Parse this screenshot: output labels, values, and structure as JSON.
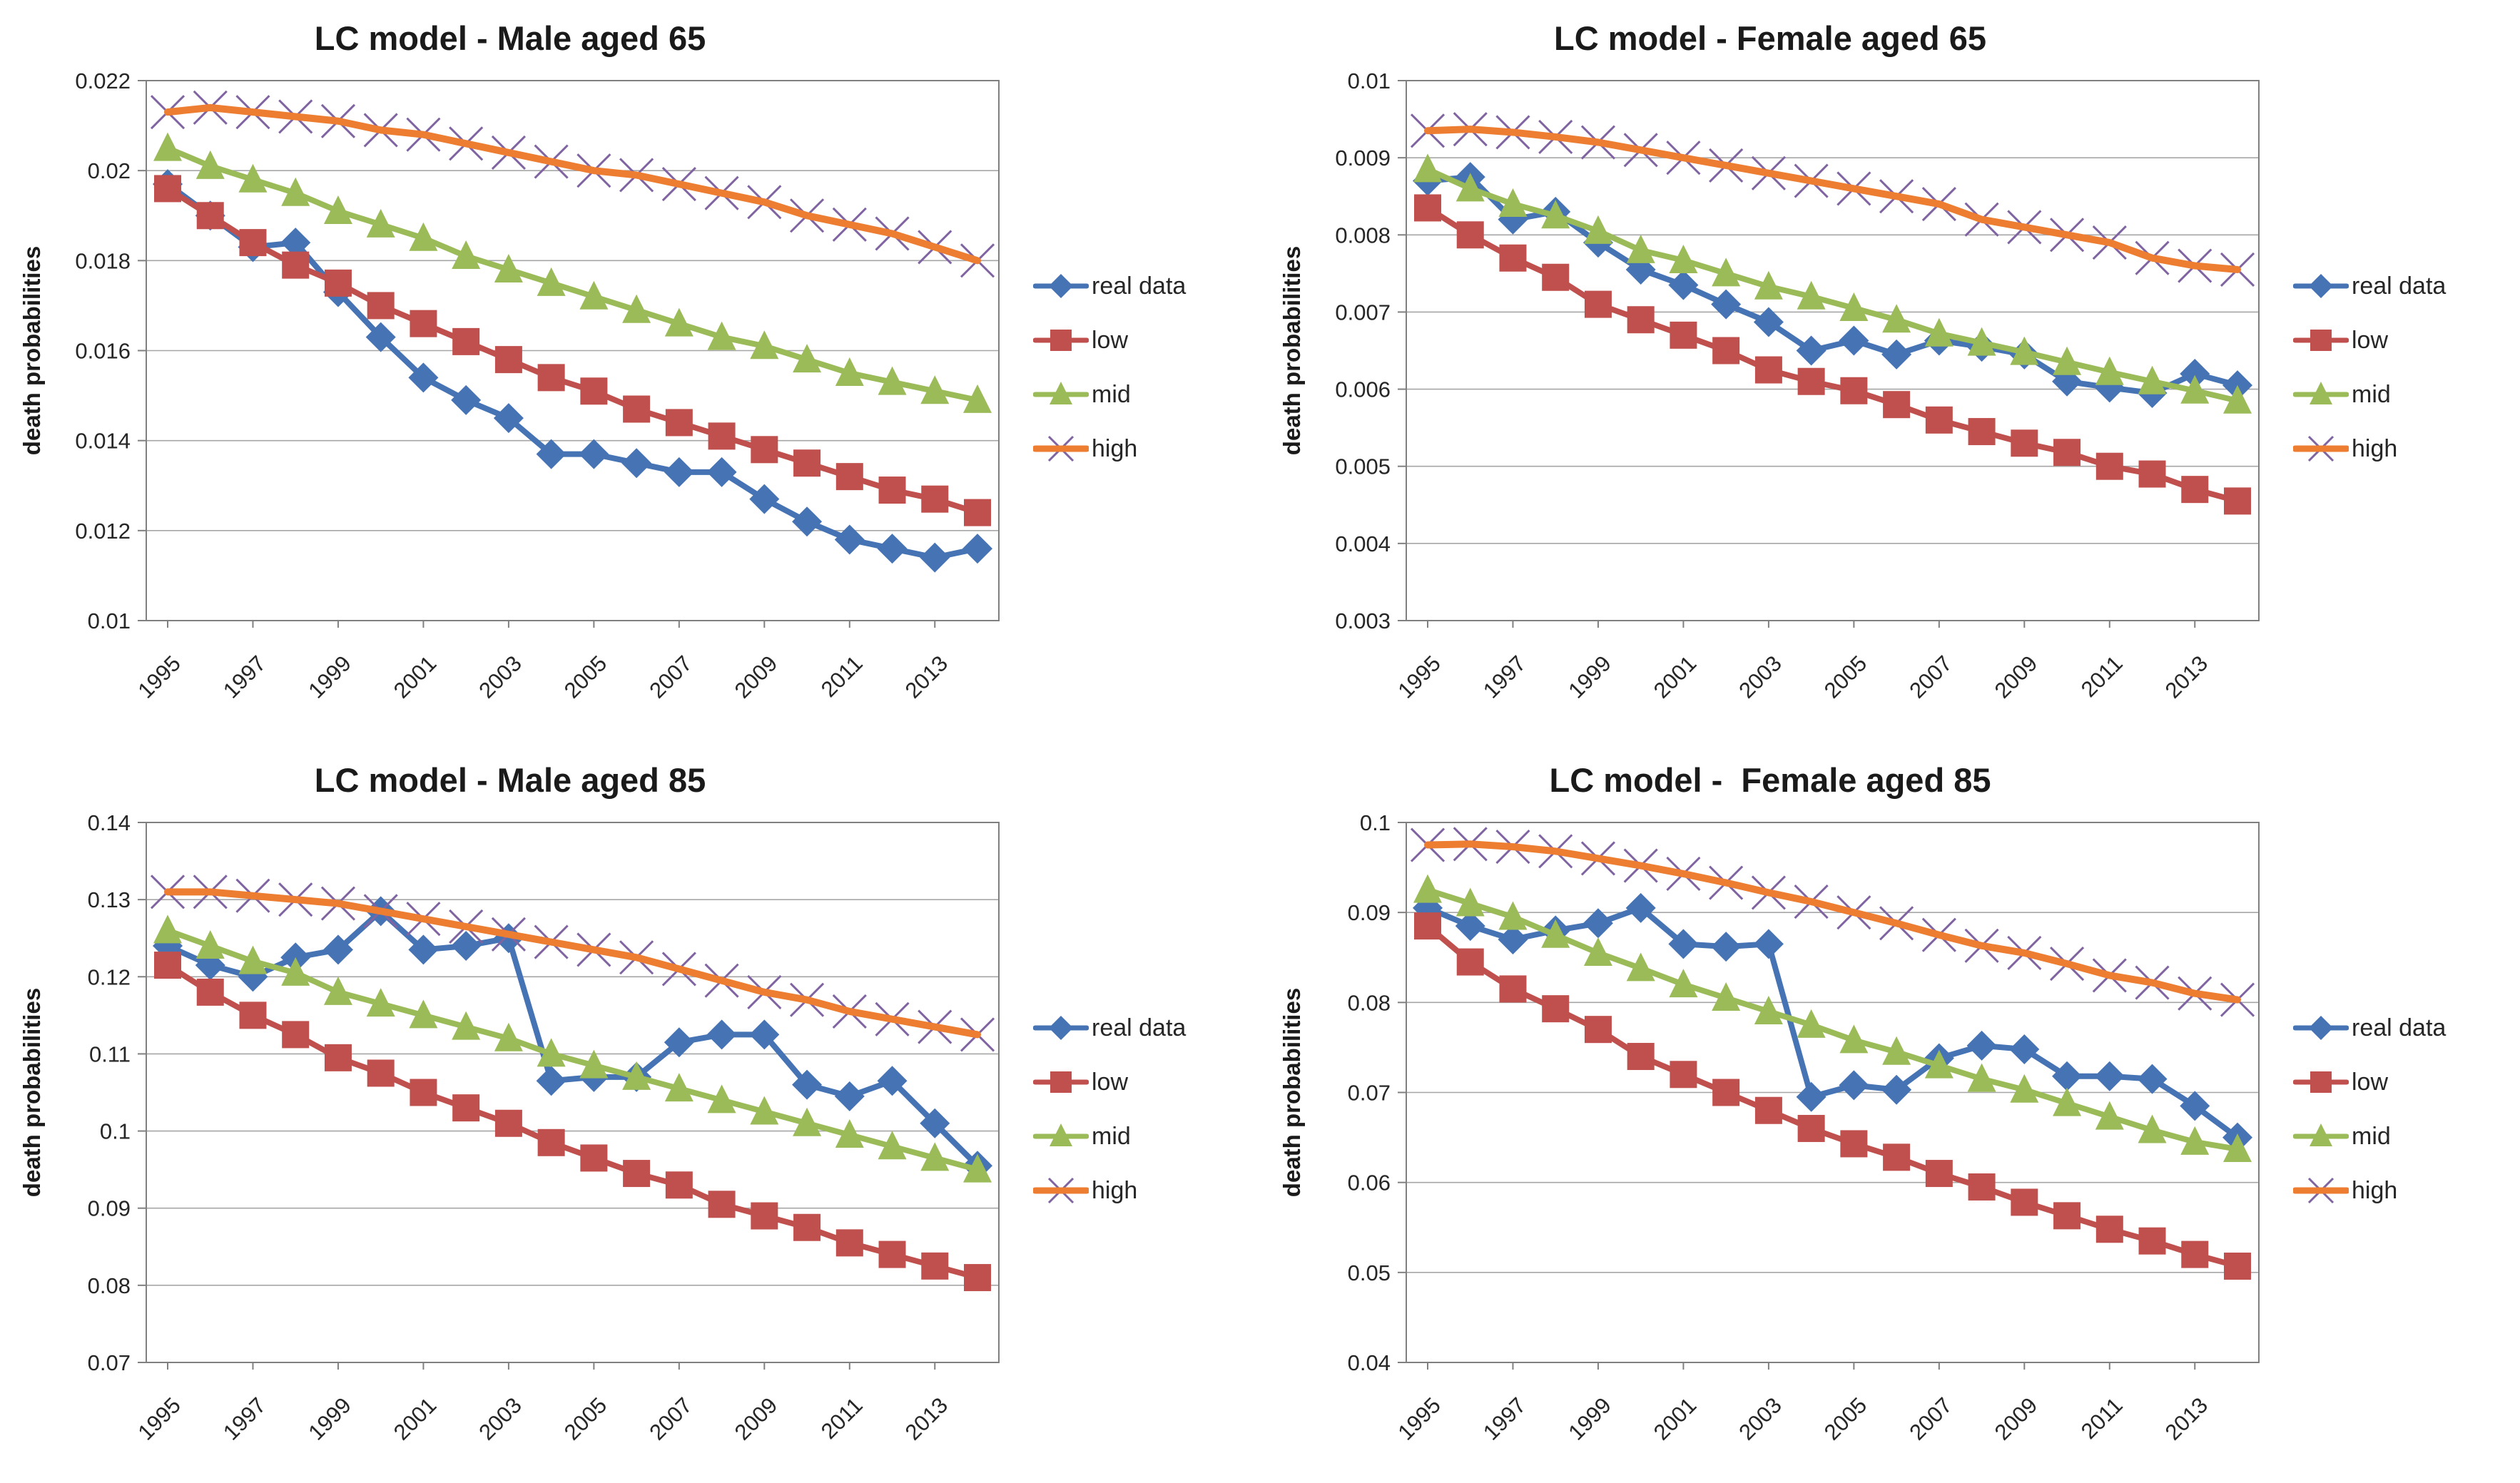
{
  "figure": {
    "background": "#ffffff",
    "gridline_color": "#a6a6a6",
    "axis_color": "#808080",
    "text_color": "#262626"
  },
  "chart_data": [
    {
      "type": "line",
      "title": "LC model - Male aged 65",
      "ylabel": "death probabilities",
      "xlabel": "",
      "grid": "horizontal",
      "legend_position": "right",
      "x": [
        1995,
        1996,
        1997,
        1998,
        1999,
        2000,
        2001,
        2002,
        2003,
        2004,
        2005,
        2006,
        2007,
        2008,
        2009,
        2010,
        2011,
        2012,
        2013,
        2014
      ],
      "x_tick_labels": [
        "1995",
        "1997",
        "1999",
        "2001",
        "2003",
        "2005",
        "2007",
        "2009",
        "2011",
        "2013"
      ],
      "ylim": [
        0.01,
        0.022
      ],
      "y_ticks": [
        {
          "v": 0.01,
          "label": "0.01"
        },
        {
          "v": 0.012,
          "label": "0.012"
        },
        {
          "v": 0.014,
          "label": "0.014"
        },
        {
          "v": 0.016,
          "label": "0.016"
        },
        {
          "v": 0.018,
          "label": "0.018"
        },
        {
          "v": 0.02,
          "label": "0.02"
        },
        {
          "v": 0.022,
          "label": "0.022"
        }
      ],
      "series": [
        {
          "name": "real data",
          "color": "#4573B4",
          "marker": "diamond",
          "values": [
            0.0197,
            0.019,
            0.0183,
            0.0184,
            0.0173,
            0.0163,
            0.0154,
            0.0149,
            0.0145,
            0.0137,
            0.0137,
            0.0135,
            0.0133,
            0.0133,
            0.0127,
            0.0122,
            0.0118,
            0.0116,
            0.0114,
            0.0116
          ]
        },
        {
          "name": "low",
          "color": "#C0504D",
          "marker": "square",
          "values": [
            0.0196,
            0.019,
            0.0184,
            0.0179,
            0.0175,
            0.017,
            0.0166,
            0.0162,
            0.0158,
            0.0154,
            0.0151,
            0.0147,
            0.0144,
            0.0141,
            0.0138,
            0.0135,
            0.0132,
            0.0129,
            0.0127,
            0.0124
          ]
        },
        {
          "name": "mid",
          "color": "#9BBB59",
          "marker": "triangle",
          "values": [
            0.0205,
            0.0201,
            0.0198,
            0.0195,
            0.0191,
            0.0188,
            0.0185,
            0.0181,
            0.0178,
            0.0175,
            0.0172,
            0.0169,
            0.0166,
            0.0163,
            0.0161,
            0.0158,
            0.0155,
            0.0153,
            0.0151,
            0.0149
          ]
        },
        {
          "name": "high",
          "color": "#ED7D31",
          "marker": "x",
          "marker_color": "#8064A2",
          "values": [
            0.0213,
            0.0214,
            0.0213,
            0.0212,
            0.0211,
            0.0209,
            0.0208,
            0.0206,
            0.0204,
            0.0202,
            0.02,
            0.0199,
            0.0197,
            0.0195,
            0.0193,
            0.019,
            0.0188,
            0.0186,
            0.0183,
            0.018
          ]
        }
      ]
    },
    {
      "type": "line",
      "title": "LC model - Female aged 65",
      "ylabel": "death probabilities",
      "xlabel": "",
      "grid": "horizontal",
      "legend_position": "right",
      "x": [
        1995,
        1996,
        1997,
        1998,
        1999,
        2000,
        2001,
        2002,
        2003,
        2004,
        2005,
        2006,
        2007,
        2008,
        2009,
        2010,
        2011,
        2012,
        2013,
        2014
      ],
      "x_tick_labels": [
        "1995",
        "1997",
        "1999",
        "2001",
        "2003",
        "2005",
        "2007",
        "2009",
        "2011",
        "2013"
      ],
      "ylim": [
        0.003,
        0.01
      ],
      "y_ticks": [
        {
          "v": 0.003,
          "label": "0.003"
        },
        {
          "v": 0.004,
          "label": "0.004"
        },
        {
          "v": 0.005,
          "label": "0.005"
        },
        {
          "v": 0.006,
          "label": "0.006"
        },
        {
          "v": 0.007,
          "label": "0.007"
        },
        {
          "v": 0.008,
          "label": "0.008"
        },
        {
          "v": 0.009,
          "label": "0.009"
        },
        {
          "v": 0.01,
          "label": "0.01"
        }
      ],
      "series": [
        {
          "name": "real data",
          "color": "#4573B4",
          "marker": "diamond",
          "values": [
            0.0087,
            0.00875,
            0.0082,
            0.0083,
            0.0079,
            0.00755,
            0.00735,
            0.0071,
            0.00687,
            0.0065,
            0.00663,
            0.00645,
            0.00663,
            0.00655,
            0.00645,
            0.0061,
            0.00602,
            0.00595,
            0.0062,
            0.00605
          ]
        },
        {
          "name": "low",
          "color": "#C0504D",
          "marker": "square",
          "values": [
            0.00835,
            0.008,
            0.0077,
            0.00745,
            0.0071,
            0.0069,
            0.0067,
            0.0065,
            0.00625,
            0.0061,
            0.00598,
            0.0058,
            0.0056,
            0.00545,
            0.0053,
            0.00518,
            0.005,
            0.0049,
            0.0047,
            0.00455
          ]
        },
        {
          "name": "mid",
          "color": "#9BBB59",
          "marker": "triangle",
          "values": [
            0.00885,
            0.0086,
            0.0084,
            0.00825,
            0.00805,
            0.0078,
            0.00767,
            0.0075,
            0.00733,
            0.0072,
            0.00705,
            0.0069,
            0.00672,
            0.0066,
            0.00648,
            0.00635,
            0.00622,
            0.0061,
            0.00598,
            0.00585
          ]
        },
        {
          "name": "high",
          "color": "#ED7D31",
          "marker": "x",
          "marker_color": "#8064A2",
          "values": [
            0.00935,
            0.00937,
            0.00933,
            0.00927,
            0.0092,
            0.0091,
            0.009,
            0.0089,
            0.0088,
            0.0087,
            0.0086,
            0.0085,
            0.0084,
            0.0082,
            0.0081,
            0.008,
            0.0079,
            0.0077,
            0.0076,
            0.00755
          ]
        }
      ]
    },
    {
      "type": "line",
      "title": "LC model - Male aged 85",
      "ylabel": "death probabilities",
      "xlabel": "",
      "grid": "horizontal",
      "legend_position": "right",
      "x": [
        1995,
        1996,
        1997,
        1998,
        1999,
        2000,
        2001,
        2002,
        2003,
        2004,
        2005,
        2006,
        2007,
        2008,
        2009,
        2010,
        2011,
        2012,
        2013,
        2014
      ],
      "x_tick_labels": [
        "1995",
        "1997",
        "1999",
        "2001",
        "2003",
        "2005",
        "2007",
        "2009",
        "2011",
        "2013"
      ],
      "ylim": [
        0.07,
        0.14
      ],
      "y_ticks": [
        {
          "v": 0.07,
          "label": "0.07"
        },
        {
          "v": 0.08,
          "label": "0.08"
        },
        {
          "v": 0.09,
          "label": "0.09"
        },
        {
          "v": 0.1,
          "label": "0.1"
        },
        {
          "v": 0.11,
          "label": "0.11"
        },
        {
          "v": 0.12,
          "label": "0.12"
        },
        {
          "v": 0.13,
          "label": "0.13"
        },
        {
          "v": 0.14,
          "label": "0.14"
        }
      ],
      "series": [
        {
          "name": "real data",
          "color": "#4573B4",
          "marker": "diamond",
          "values": [
            0.124,
            0.1215,
            0.12,
            0.1225,
            0.1235,
            0.1285,
            0.1235,
            0.124,
            0.125,
            0.1065,
            0.107,
            0.107,
            0.1115,
            0.1125,
            0.1125,
            0.106,
            0.1045,
            0.1065,
            0.101,
            0.0955
          ]
        },
        {
          "name": "low",
          "color": "#C0504D",
          "marker": "square",
          "values": [
            0.1215,
            0.118,
            0.115,
            0.1125,
            0.1095,
            0.1075,
            0.105,
            0.103,
            0.101,
            0.0985,
            0.0965,
            0.0945,
            0.093,
            0.0905,
            0.089,
            0.0875,
            0.0855,
            0.084,
            0.0825,
            0.081
          ]
        },
        {
          "name": "mid",
          "color": "#9BBB59",
          "marker": "triangle",
          "values": [
            0.126,
            0.124,
            0.122,
            0.1205,
            0.118,
            0.1165,
            0.115,
            0.1135,
            0.112,
            0.11,
            0.1085,
            0.107,
            0.1055,
            0.104,
            0.1025,
            0.101,
            0.0995,
            0.098,
            0.0965,
            0.095
          ]
        },
        {
          "name": "high",
          "color": "#ED7D31",
          "marker": "x",
          "marker_color": "#8064A2",
          "values": [
            0.131,
            0.131,
            0.1305,
            0.13,
            0.1295,
            0.1285,
            0.1275,
            0.1265,
            0.1255,
            0.1245,
            0.1235,
            0.1225,
            0.121,
            0.1195,
            0.118,
            0.117,
            0.1155,
            0.1145,
            0.1135,
            0.1125
          ]
        }
      ]
    },
    {
      "type": "line",
      "title": "LC model -  Female aged 85",
      "ylabel": "death probabilities",
      "xlabel": "",
      "grid": "horizontal",
      "legend_position": "right",
      "x": [
        1995,
        1996,
        1997,
        1998,
        1999,
        2000,
        2001,
        2002,
        2003,
        2004,
        2005,
        2006,
        2007,
        2008,
        2009,
        2010,
        2011,
        2012,
        2013,
        2014
      ],
      "x_tick_labels": [
        "1995",
        "1997",
        "1999",
        "2001",
        "2003",
        "2005",
        "2007",
        "2009",
        "2011",
        "2013"
      ],
      "ylim": [
        0.04,
        0.1
      ],
      "y_ticks": [
        {
          "v": 0.04,
          "label": "0.04"
        },
        {
          "v": 0.05,
          "label": "0.05"
        },
        {
          "v": 0.06,
          "label": "0.06"
        },
        {
          "v": 0.07,
          "label": "0.07"
        },
        {
          "v": 0.08,
          "label": "0.08"
        },
        {
          "v": 0.09,
          "label": "0.09"
        },
        {
          "v": 0.1,
          "label": "0.1"
        }
      ],
      "series": [
        {
          "name": "real data",
          "color": "#4573B4",
          "marker": "diamond",
          "values": [
            0.0905,
            0.0885,
            0.087,
            0.088,
            0.0888,
            0.0905,
            0.0865,
            0.0862,
            0.0865,
            0.0695,
            0.0708,
            0.0703,
            0.0738,
            0.0752,
            0.0748,
            0.0718,
            0.0718,
            0.0715,
            0.0685,
            0.065
          ]
        },
        {
          "name": "low",
          "color": "#C0504D",
          "marker": "square",
          "values": [
            0.0885,
            0.0845,
            0.0815,
            0.0793,
            0.077,
            0.074,
            0.072,
            0.07,
            0.068,
            0.066,
            0.0643,
            0.0628,
            0.061,
            0.0595,
            0.0578,
            0.0563,
            0.0548,
            0.0535,
            0.052,
            0.0507
          ]
        },
        {
          "name": "mid",
          "color": "#9BBB59",
          "marker": "triangle",
          "values": [
            0.0925,
            0.091,
            0.0895,
            0.0875,
            0.0855,
            0.0838,
            0.082,
            0.0805,
            0.079,
            0.0775,
            0.0758,
            0.0745,
            0.073,
            0.0715,
            0.0703,
            0.0688,
            0.0673,
            0.0658,
            0.0645,
            0.0637
          ]
        },
        {
          "name": "high",
          "color": "#ED7D31",
          "marker": "x",
          "marker_color": "#8064A2",
          "values": [
            0.0975,
            0.0976,
            0.0973,
            0.0968,
            0.096,
            0.0952,
            0.0943,
            0.0933,
            0.0922,
            0.0912,
            0.09,
            0.0888,
            0.0875,
            0.0863,
            0.0855,
            0.0843,
            0.083,
            0.0822,
            0.081,
            0.0803
          ]
        }
      ]
    }
  ]
}
